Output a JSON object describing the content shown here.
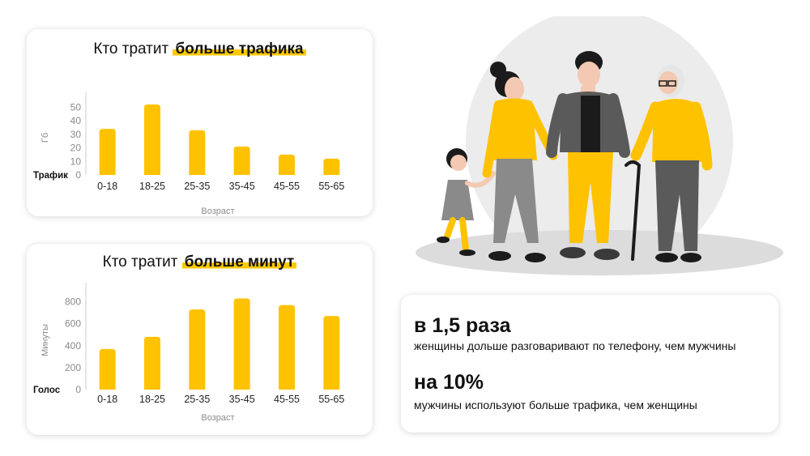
{
  "colors": {
    "bar": "#ffc200",
    "axis": "#cfcfcf",
    "tick_text": "#8a8a8a",
    "highlight": "#ffc800",
    "card_bg": "#ffffff"
  },
  "chart_data": [
    {
      "type": "bar",
      "title_plain": "Кто тратит ",
      "title_highlight": "больше трафика",
      "categories": [
        "0-18",
        "18-25",
        "25-35",
        "35-45",
        "45-55",
        "55-65"
      ],
      "series": [
        {
          "name": "Трафик",
          "values": [
            34,
            52,
            33,
            21,
            15,
            12
          ]
        }
      ],
      "ylabel": "Гб",
      "xlabel": "Возраст",
      "ylim": [
        0,
        55
      ],
      "yticks": [
        0,
        10,
        20,
        30,
        40,
        50
      ],
      "grid": false,
      "legend": "bottom-left"
    },
    {
      "type": "bar",
      "title_plain": "Кто тратит ",
      "title_highlight": "больше минут",
      "categories": [
        "0-18",
        "18-25",
        "25-35",
        "35-45",
        "45-55",
        "55-65"
      ],
      "series": [
        {
          "name": "Голос",
          "values": [
            370,
            480,
            730,
            830,
            770,
            670
          ]
        }
      ],
      "ylabel": "Минуты",
      "xlabel": "Возраст",
      "ylim": [
        0,
        900
      ],
      "yticks": [
        0,
        200,
        400,
        600,
        800
      ],
      "grid": false,
      "legend": "bottom-left"
    }
  ],
  "stats": [
    {
      "headline": "в 1,5 раза",
      "text": "женщины дольше разговаривают по телефону, чем мужчины"
    },
    {
      "headline": "на 10%",
      "text": "мужчины используют больше трафика, чем женщины"
    }
  ]
}
